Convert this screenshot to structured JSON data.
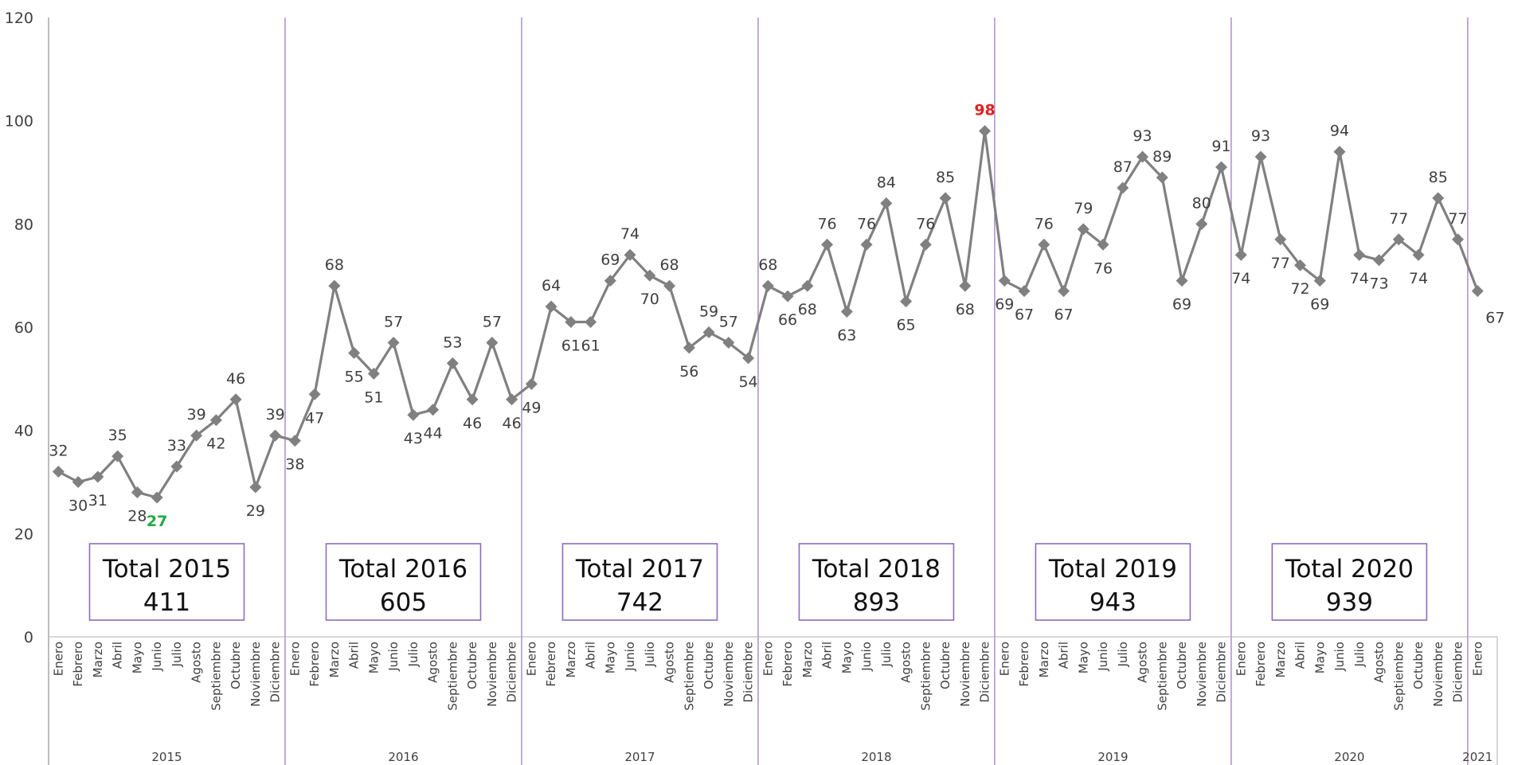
{
  "chart_data": {
    "type": "line",
    "ylim": [
      0,
      120
    ],
    "yticks": [
      0,
      20,
      40,
      60,
      80,
      100,
      120
    ],
    "grid": false,
    "colors": {
      "line": "#808080",
      "marker": "#808080",
      "separator": "#9b7fc4",
      "box_border": "#8e6bbf",
      "max_label": "#e02020",
      "min_label": "#22aa44",
      "text": "#404040"
    },
    "years": [
      {
        "year": "2015",
        "months": [
          "Enero",
          "Febrero",
          "Marzo",
          "Abril",
          "Mayo",
          "Junio",
          "Julio",
          "Agosto",
          "Septiembre",
          "Octubre",
          "Noviembre",
          "Diciembre"
        ],
        "values": [
          32,
          30,
          31,
          35,
          28,
          27,
          33,
          39,
          42,
          46,
          29,
          39
        ],
        "total_label": "Total 2015",
        "total_value": "411"
      },
      {
        "year": "2016",
        "months": [
          "Enero",
          "Febrero",
          "Marzo",
          "Abril",
          "Mayo",
          "Junio",
          "Julio",
          "Agosto",
          "Septiembre",
          "Octubre",
          "Noviembre",
          "Diciembre"
        ],
        "values": [
          38,
          47,
          68,
          55,
          51,
          57,
          43,
          44,
          53,
          46,
          57,
          46
        ],
        "total_label": "Total 2016",
        "total_value": "605"
      },
      {
        "year": "2017",
        "months": [
          "Enero",
          "Febrero",
          "Marzo",
          "Abril",
          "Mayo",
          "Junio",
          "Julio",
          "Agosto",
          "Septiembre",
          "Octubre",
          "Noviembre",
          "Diciembre"
        ],
        "values": [
          49,
          64,
          61,
          61,
          69,
          74,
          70,
          68,
          56,
          59,
          57,
          54
        ],
        "total_label": "Total 2017",
        "total_value": "742"
      },
      {
        "year": "2018",
        "months": [
          "Enero",
          "Febrero",
          "Marzo",
          "Abril",
          "Mayo",
          "Junio",
          "Julio",
          "Agosto",
          "Septiembre",
          "Octubre",
          "Noviembre",
          "Diciembre"
        ],
        "values": [
          68,
          66,
          68,
          76,
          63,
          76,
          84,
          65,
          76,
          85,
          68,
          98
        ],
        "total_label": "Total 2018",
        "total_value": "893"
      },
      {
        "year": "2019",
        "months": [
          "Enero",
          "Febrero",
          "Marzo",
          "Abril",
          "Mayo",
          "Junio",
          "Julio",
          "Agosto",
          "Septiembre",
          "Octubre",
          "Noviembre",
          "Diciembre"
        ],
        "values": [
          69,
          67,
          76,
          67,
          79,
          76,
          87,
          93,
          89,
          69,
          80,
          91
        ],
        "total_label": "Total 2019",
        "total_value": "943"
      },
      {
        "year": "2020",
        "months": [
          "Enero",
          "Febrero",
          "Marzo",
          "Abril",
          "Mayo",
          "Junio",
          "Julio",
          "Agosto",
          "Septiembre",
          "Octubre",
          "Noviembre",
          "Diciembre"
        ],
        "values": [
          74,
          93,
          77,
          72,
          69,
          94,
          74,
          73,
          77,
          74,
          85,
          77
        ],
        "total_label": "Total 2020",
        "total_value": "939"
      },
      {
        "year": "2021",
        "months": [
          "Enero"
        ],
        "values": [
          67
        ]
      }
    ],
    "highlight_max": 98,
    "highlight_min": 27
  }
}
